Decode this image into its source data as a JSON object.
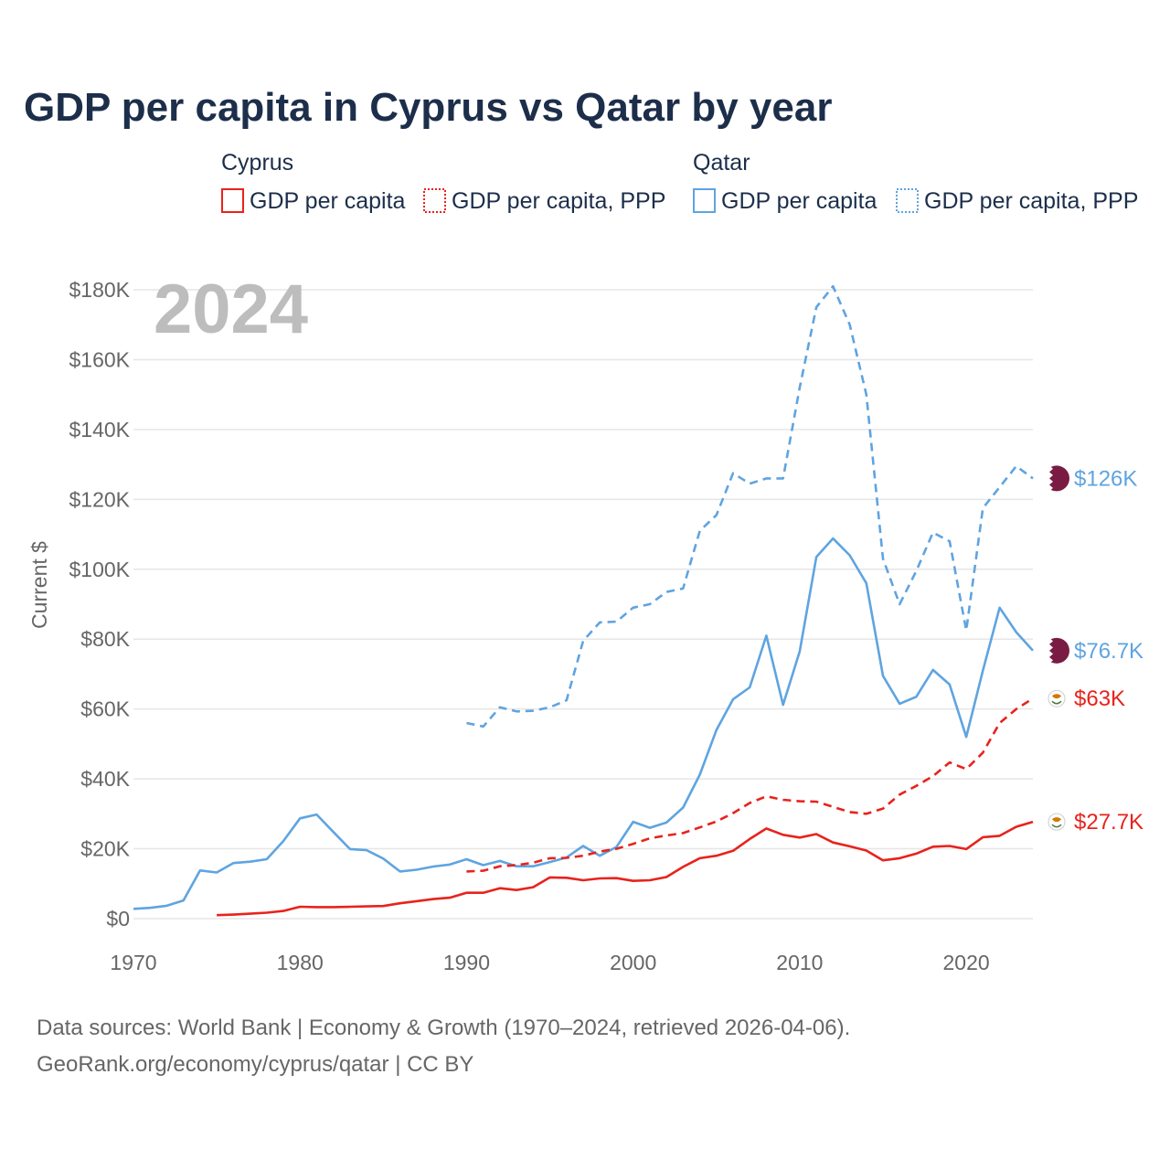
{
  "title": "GDP per capita in Cyprus vs Qatar by year",
  "year_watermark": "2024",
  "legend": {
    "groups": [
      {
        "name": "Cyprus",
        "items": [
          "GDP per capita",
          "GDP per capita, PPP"
        ]
      },
      {
        "name": "Qatar",
        "items": [
          "GDP per capita",
          "GDP per capita, PPP"
        ]
      }
    ]
  },
  "source": {
    "line1": "Data sources: World Bank | Economy & Growth (1970–2024, retrieved 2026-04-06).",
    "line2": "GeoRank.org/economy/cyprus/qatar | CC BY"
  },
  "colors": {
    "cyprus": "#e8231c",
    "qatar": "#5fa4e0",
    "qatar_flag": "#7a1b43",
    "title": "#1c2e4a"
  },
  "chart_data": {
    "type": "line",
    "title": "GDP per capita in Cyprus vs Qatar by year",
    "xlabel": "",
    "ylabel": "Current $",
    "xlim": [
      1970,
      2024
    ],
    "ylim": [
      0,
      180000
    ],
    "x_ticks": [
      1970,
      1980,
      1990,
      2000,
      2010,
      2020
    ],
    "x_tick_labels": [
      "1970",
      "1980",
      "1990",
      "2000",
      "2010",
      "2020"
    ],
    "y_ticks": [
      0,
      20000,
      40000,
      60000,
      80000,
      100000,
      120000,
      140000,
      160000,
      180000
    ],
    "y_tick_labels": [
      "$0",
      "$20K",
      "$40K",
      "$60K",
      "$80K",
      "$100K",
      "$120K",
      "$140K",
      "$160K",
      "$180K"
    ],
    "grid": true,
    "series": [
      {
        "name": "Qatar GDP per capita, PPP",
        "country": "qatar",
        "dash": "dashed",
        "end_label": "$126K",
        "start": 1990,
        "values": [
          56000,
          55000,
          60500,
          59300,
          59500,
          60500,
          62500,
          79500,
          84800,
          85000,
          89000,
          90000,
          93500,
          94500,
          111000,
          115500,
          127500,
          124500,
          126000,
          126000,
          152000,
          175000,
          181000,
          170000,
          150000,
          103000,
          90000,
          99500,
          110500,
          108000,
          82500,
          117500,
          123500,
          129500,
          126000
        ]
      },
      {
        "name": "Qatar GDP per capita",
        "country": "qatar",
        "dash": "solid",
        "end_label": "$76.7K",
        "start": 1970,
        "values": [
          2800,
          3100,
          3700,
          5200,
          13800,
          13200,
          15900,
          16300,
          17000,
          22200,
          28700,
          29800,
          24800,
          19900,
          19600,
          17200,
          13500,
          14000,
          14900,
          15500,
          17000,
          15300,
          16500,
          15000,
          15000,
          16200,
          17500,
          20800,
          18000,
          20500,
          27700,
          26000,
          27500,
          31800,
          41200,
          54000,
          62800,
          66200,
          81000,
          61200,
          76500,
          103500,
          108800,
          104000,
          96000,
          69500,
          61500,
          63500,
          71200,
          67000,
          52000,
          71000,
          89000,
          82000,
          76700
        ]
      },
      {
        "name": "Cyprus GDP per capita, PPP",
        "country": "cyprus",
        "dash": "dashed",
        "end_label": "$63K",
        "start": 1990,
        "values": [
          13500,
          13700,
          15000,
          15300,
          16000,
          17300,
          17400,
          18000,
          19200,
          20000,
          21400,
          23000,
          23800,
          24500,
          26100,
          27800,
          30200,
          33100,
          35000,
          34000,
          33600,
          33500,
          32000,
          30500,
          30000,
          31500,
          35500,
          38000,
          40800,
          44700,
          42800,
          47500,
          56000,
          60000,
          63000
        ]
      },
      {
        "name": "Cyprus GDP per capita",
        "country": "cyprus",
        "dash": "solid",
        "end_label": "$27.7K",
        "start": 1975,
        "values": [
          1000,
          1150,
          1400,
          1700,
          2200,
          3400,
          3300,
          3300,
          3400,
          3500,
          3600,
          4400,
          5000,
          5600,
          6000,
          7400,
          7400,
          8700,
          8200,
          9000,
          11800,
          11700,
          11000,
          11500,
          11600,
          10800,
          11000,
          11900,
          14800,
          17300,
          18000,
          19400,
          22800,
          25800,
          24000,
          23200,
          24200,
          21800,
          20700,
          19500,
          16700,
          17300,
          18600,
          20600,
          20800,
          19900,
          23300,
          23700,
          26300,
          27700
        ]
      }
    ]
  }
}
